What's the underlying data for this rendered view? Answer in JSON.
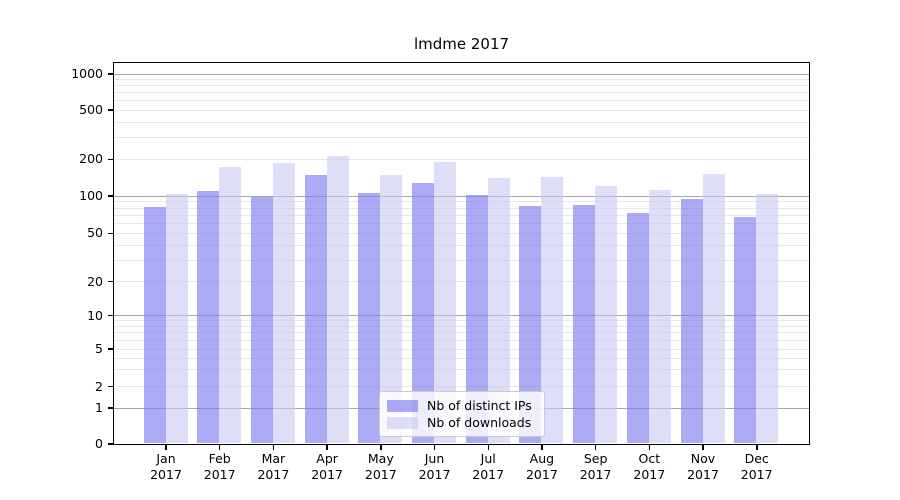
{
  "figure": {
    "title": "lmdme 2017",
    "background": "#ffffff"
  },
  "chart_data": {
    "type": "bar",
    "title": "lmdme 2017",
    "yscale": "symlog",
    "grid": true,
    "categories": [
      "Jan",
      "Feb",
      "Mar",
      "Apr",
      "May",
      "Jun",
      "Jul",
      "Aug",
      "Sep",
      "Oct",
      "Nov",
      "Dec"
    ],
    "x_sublabel": "2017",
    "series": [
      {
        "name": "Nb of distinct IPs",
        "color": "#7d7df0",
        "fill_alpha": 0.65,
        "values": [
          81,
          110,
          97,
          147,
          104,
          127,
          102,
          83,
          84,
          72,
          94,
          67
        ]
      },
      {
        "name": "Nb of downloads",
        "color": "#c8c8f5",
        "fill_alpha": 0.6,
        "values": [
          103,
          170,
          184,
          210,
          148,
          187,
          138,
          142,
          119,
          112,
          150,
          103
        ]
      }
    ],
    "ytick_labels": [
      "1000",
      "500",
      "200",
      "100",
      "50",
      "20",
      "10",
      "5",
      "2",
      "1",
      "0"
    ],
    "ylim": [
      0,
      1200
    ],
    "gridlines": {
      "major_values": [
        1000,
        100,
        10,
        1
      ],
      "major_color": "#a8a8a8",
      "minor_values": [
        900,
        800,
        700,
        600,
        500,
        400,
        300,
        200,
        90,
        80,
        70,
        60,
        50,
        40,
        30,
        20,
        9,
        8,
        7,
        6,
        5,
        4,
        3,
        2
      ],
      "minor_color": "#e8e8e8"
    },
    "legend_position": "lower center"
  }
}
